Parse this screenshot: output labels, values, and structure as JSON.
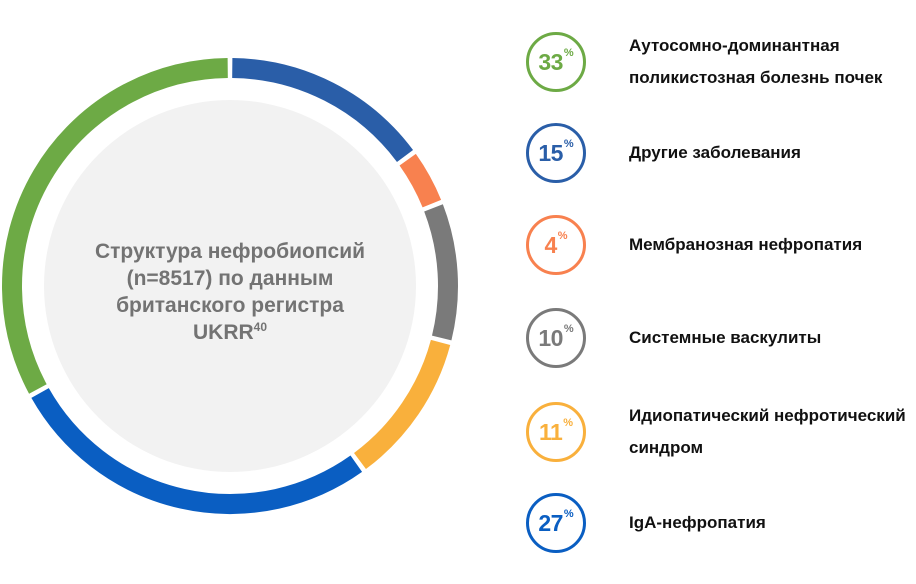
{
  "center": {
    "title_lines": [
      "Структура нефробиопсий",
      "(n=8517) по данным",
      "британского регистра",
      "UKRR"
    ],
    "superscript": "40"
  },
  "legend": [
    {
      "value": "33",
      "unit": "%",
      "label": "Аутосомно-доминантная поликистозная болезнь почек",
      "color": "#6DAA45"
    },
    {
      "value": "15",
      "unit": "%",
      "label": "Другие заболевания",
      "color": "#2A5EA8"
    },
    {
      "value": "4",
      "unit": "%",
      "label": "Мембранозная нефропатия",
      "color": "#F8814F"
    },
    {
      "value": "10",
      "unit": "%",
      "label": "Системные васкулиты",
      "color": "#7A7A7A"
    },
    {
      "value": "11",
      "unit": "%",
      "label": "Идиопатический нефротический синдром",
      "color": "#F9B03C"
    },
    {
      "value": "27",
      "unit": "%",
      "label": "IgA-нефропатия",
      "color": "#0A5EC2"
    }
  ],
  "chart_data": {
    "type": "pie",
    "variant": "donut",
    "title": "Структура нефробиопсий (n=8517) по данным британского регистра UKRR40",
    "categories": [
      "Другие заболевания",
      "Мембранозная нефропатия",
      "Системные васкулиты",
      "Идиопатический нефротический синдром",
      "IgA-нефропатия",
      "Аутосомно-доминантная поликистозная болезнь почек"
    ],
    "values": [
      15,
      4,
      10,
      11,
      27,
      33
    ],
    "colors": [
      "#2A5EA8",
      "#F8814F",
      "#7A7A7A",
      "#F9B03C",
      "#0A5EC2",
      "#6DAA45"
    ],
    "unit": "%",
    "start_angle_deg": 0,
    "direction": "clockwise",
    "legend_position": "right"
  }
}
